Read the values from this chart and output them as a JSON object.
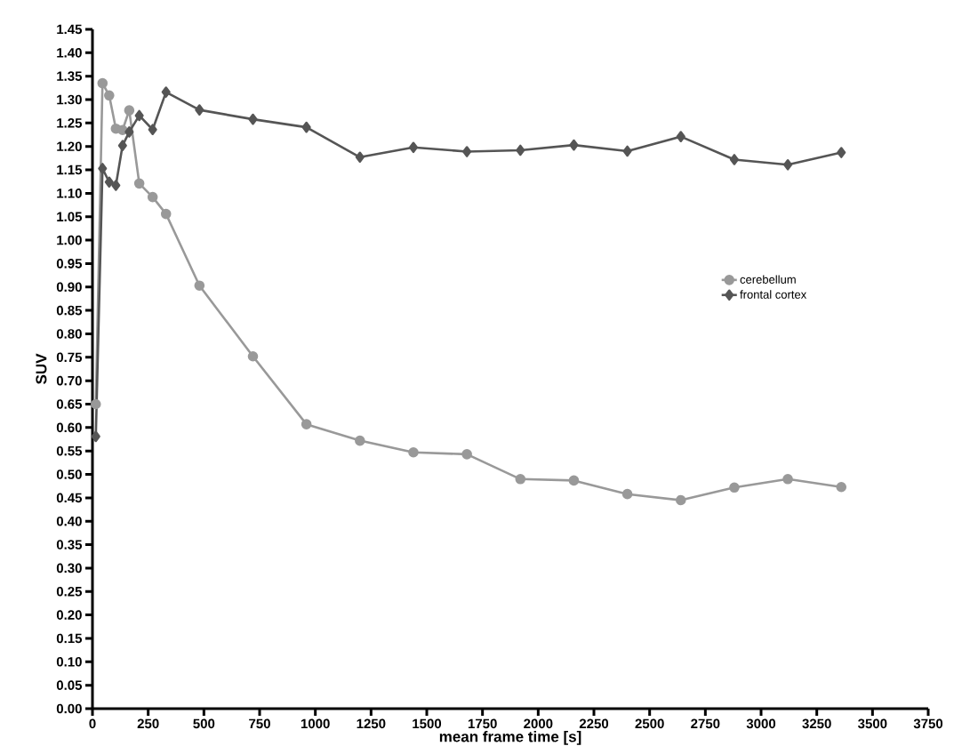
{
  "chart_data": {
    "type": "line",
    "xlabel": "mean frame time [s]",
    "ylabel": "SUV",
    "x": [
      15,
      45,
      75,
      105,
      135,
      165,
      210,
      270,
      330,
      480,
      720,
      960,
      1200,
      1440,
      1680,
      1920,
      2160,
      2400,
      2640,
      2880,
      3120,
      3360
    ],
    "series": [
      {
        "name": "cerebellum",
        "color": "#999999",
        "marker": "circle",
        "values": [
          0.65,
          1.335,
          1.309,
          1.238,
          1.235,
          1.277,
          1.121,
          1.092,
          1.056,
          0.903,
          0.752,
          0.607,
          0.572,
          0.547,
          0.543,
          0.49,
          0.487,
          0.458,
          0.445,
          0.472,
          0.49,
          0.473
        ]
      },
      {
        "name": "frontal cortex",
        "color": "#555555",
        "marker": "diamond",
        "values": [
          0.581,
          1.153,
          1.124,
          1.117,
          1.202,
          1.231,
          1.266,
          1.236,
          1.316,
          1.278,
          1.258,
          1.241,
          1.177,
          1.198,
          1.189,
          1.192,
          1.203,
          1.19,
          1.221,
          1.172,
          1.161,
          1.187
        ]
      }
    ],
    "xlim": [
      0,
      3750
    ],
    "ylim": [
      0,
      1.45
    ],
    "xticks": [
      0,
      250,
      500,
      750,
      1000,
      1250,
      1500,
      1750,
      2000,
      2250,
      2500,
      2750,
      3000,
      3250,
      3500,
      3750
    ],
    "yticks": [
      {
        "value": 0,
        "label": "0.00"
      },
      {
        "value": 0.05,
        "label": "0.05"
      },
      {
        "value": 0.1,
        "label": "0.10"
      },
      {
        "value": 0.15,
        "label": "0.15"
      },
      {
        "value": 0.2,
        "label": "0.20"
      },
      {
        "value": 0.25,
        "label": "0.25"
      },
      {
        "value": 0.3,
        "label": "0.30"
      },
      {
        "value": 0.35,
        "label": "0.35"
      },
      {
        "value": 0.4,
        "label": "0.40"
      },
      {
        "value": 0.45,
        "label": "0.45"
      },
      {
        "value": 0.5,
        "label": "0.50"
      },
      {
        "value": 0.55,
        "label": "0.55"
      },
      {
        "value": 0.6,
        "label": "0.60"
      },
      {
        "value": 0.65,
        "label": "0.65"
      },
      {
        "value": 0.7,
        "label": "0.70"
      },
      {
        "value": 0.75,
        "label": "0.75"
      },
      {
        "value": 0.8,
        "label": "0.80"
      },
      {
        "value": 0.85,
        "label": "0.85"
      },
      {
        "value": 0.9,
        "label": "0.90"
      },
      {
        "value": 0.95,
        "label": "0.95"
      },
      {
        "value": 1.0,
        "label": "1.00"
      },
      {
        "value": 1.05,
        "label": "1.05"
      },
      {
        "value": 1.1,
        "label": "1.10"
      },
      {
        "value": 1.15,
        "label": "1.15"
      },
      {
        "value": 1.2,
        "label": "1.20"
      },
      {
        "value": 1.25,
        "label": "1.25"
      },
      {
        "value": 1.3,
        "label": "1.30"
      },
      {
        "value": 1.35,
        "label": "1.35"
      },
      {
        "value": 1.4,
        "label": "1.40"
      },
      {
        "value": 1.45,
        "label": "1.45"
      }
    ],
    "grid": false,
    "legend": "right",
    "line_style": "solid"
  }
}
